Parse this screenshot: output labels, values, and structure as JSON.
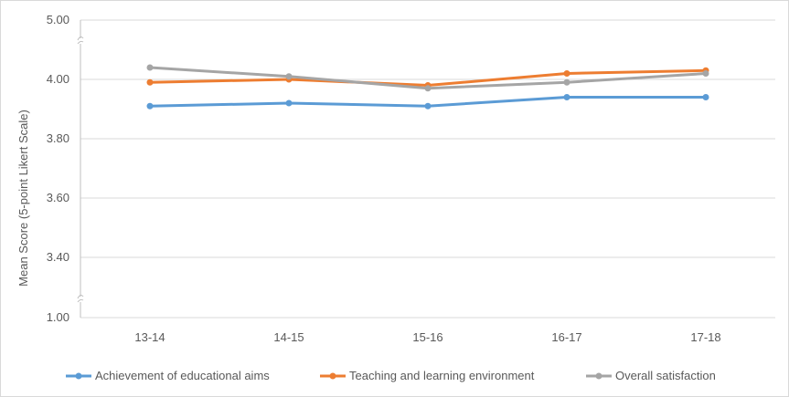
{
  "chart_data": {
    "type": "line",
    "title": "",
    "xlabel": "",
    "ylabel": "Mean Score  (5-point Likert Scale)",
    "categories": [
      "13-14",
      "14-15",
      "15-16",
      "16-17",
      "17-18"
    ],
    "y_tick_labels": [
      "1.00",
      "3.40",
      "3.60",
      "3.80",
      "4.00",
      "5.00"
    ],
    "y_axis_break": "between 1.00 and 3.40, and between 4.00 and 5.00",
    "ylim": [
      3.3,
      4.1
    ],
    "grid": "horizontal",
    "legend_position": "bottom",
    "series": [
      {
        "name": "Achievement of educational aims",
        "color": "#5b9bd5",
        "values": [
          3.91,
          3.92,
          3.91,
          3.94,
          3.94
        ]
      },
      {
        "name": "Teaching and learning environment",
        "color": "#ed7d31",
        "values": [
          3.99,
          4.0,
          3.98,
          4.02,
          4.03
        ]
      },
      {
        "name": "Overall satisfaction",
        "color": "#a5a5a5",
        "values": [
          4.04,
          4.01,
          3.97,
          3.99,
          4.02
        ]
      }
    ]
  }
}
